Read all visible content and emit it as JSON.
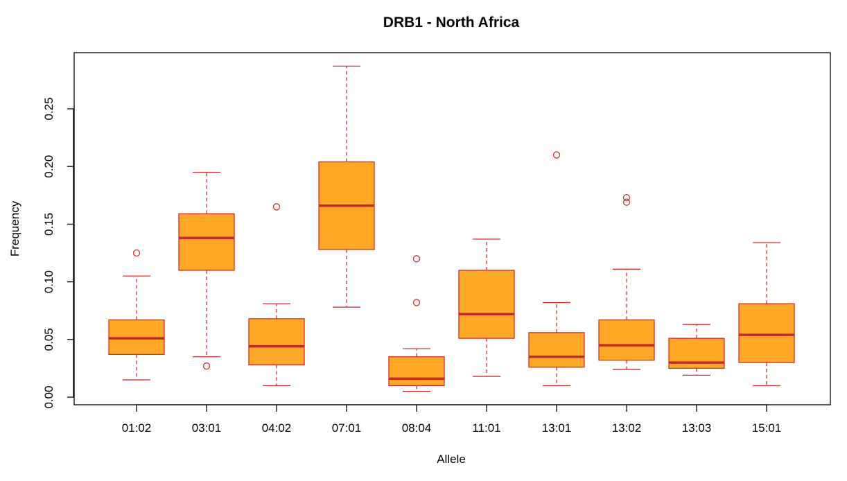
{
  "chart_data": {
    "type": "boxplot",
    "title": "DRB1 - North Africa",
    "xlabel": "Allele",
    "ylabel": "Frequency",
    "ylim": [
      0,
      0.3
    ],
    "yticks": [
      "0.00",
      "0.05",
      "0.10",
      "0.15",
      "0.20",
      "0.25"
    ],
    "grid": false,
    "colors": {
      "box_fill": "#FFA726",
      "box_stroke": "#D32F2F",
      "median": "#C62828",
      "axis": "#000000"
    },
    "categories": [
      "01:02",
      "03:01",
      "04:02",
      "07:01",
      "08:04",
      "11:01",
      "13:01",
      "13:02",
      "13:03",
      "15:01"
    ],
    "boxes": [
      {
        "label": "01:02",
        "whisker_low": 0.015,
        "q1": 0.037,
        "median": 0.051,
        "q3": 0.067,
        "whisker_high": 0.105,
        "outliers": [
          0.125
        ]
      },
      {
        "label": "03:01",
        "whisker_low": 0.035,
        "q1": 0.11,
        "median": 0.138,
        "q3": 0.159,
        "whisker_high": 0.195,
        "outliers": [
          0.027
        ]
      },
      {
        "label": "04:02",
        "whisker_low": 0.01,
        "q1": 0.028,
        "median": 0.044,
        "q3": 0.068,
        "whisker_high": 0.081,
        "outliers": [
          0.165
        ]
      },
      {
        "label": "07:01",
        "whisker_low": 0.078,
        "q1": 0.128,
        "median": 0.166,
        "q3": 0.204,
        "whisker_high": 0.287,
        "outliers": []
      },
      {
        "label": "08:04",
        "whisker_low": 0.005,
        "q1": 0.01,
        "median": 0.016,
        "q3": 0.035,
        "whisker_high": 0.042,
        "outliers": [
          0.082,
          0.12
        ]
      },
      {
        "label": "11:01",
        "whisker_low": 0.018,
        "q1": 0.051,
        "median": 0.072,
        "q3": 0.11,
        "whisker_high": 0.137,
        "outliers": []
      },
      {
        "label": "13:01",
        "whisker_low": 0.01,
        "q1": 0.026,
        "median": 0.035,
        "q3": 0.056,
        "whisker_high": 0.082,
        "outliers": [
          0.21
        ]
      },
      {
        "label": "13:02",
        "whisker_low": 0.024,
        "q1": 0.032,
        "median": 0.045,
        "q3": 0.067,
        "whisker_high": 0.111,
        "outliers": [
          0.169,
          0.173
        ]
      },
      {
        "label": "13:03",
        "whisker_low": 0.019,
        "q1": 0.025,
        "median": 0.03,
        "q3": 0.051,
        "whisker_high": 0.063,
        "outliers": []
      },
      {
        "label": "15:01",
        "whisker_low": 0.01,
        "q1": 0.03,
        "median": 0.054,
        "q3": 0.081,
        "whisker_high": 0.134,
        "outliers": []
      }
    ]
  }
}
